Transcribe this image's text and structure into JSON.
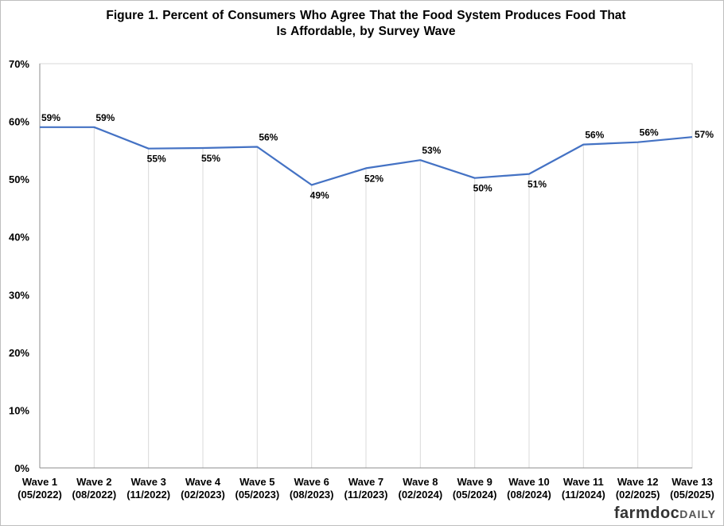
{
  "chart_data": {
    "type": "line",
    "title_line1": "Figure  1. Percent  of  Consumers  Who Agree  That  the  Food  System  Produces  Food  That",
    "title_line2": "Is Affordable,  by  Survey Wave",
    "categories": [
      [
        "Wave 1",
        "(05/2022)"
      ],
      [
        "Wave 2",
        "(08/2022)"
      ],
      [
        "Wave 3",
        "(11/2022)"
      ],
      [
        "Wave 4",
        "(02/2023)"
      ],
      [
        "Wave 5",
        "(05/2023)"
      ],
      [
        "Wave 6",
        "(08/2023)"
      ],
      [
        "Wave 7",
        "(11/2023)"
      ],
      [
        "Wave 8",
        "(02/2024)"
      ],
      [
        "Wave 9",
        "(05/2024)"
      ],
      [
        "Wave 10",
        "(08/2024)"
      ],
      [
        "Wave 11",
        "(11/2024)"
      ],
      [
        "Wave 12",
        "(02/2025)"
      ],
      [
        "Wave 13",
        "(05/2025)"
      ]
    ],
    "values": [
      59.0,
      59.0,
      55.3,
      55.4,
      55.6,
      49.0,
      51.9,
      53.3,
      50.2,
      50.9,
      56.0,
      56.4,
      57.3
    ],
    "data_labels": [
      "59%",
      "59%",
      "55%",
      "55%",
      "56%",
      "49%",
      "52%",
      "53%",
      "50%",
      "51%",
      "56%",
      "56%",
      "57%"
    ],
    "label_position": [
      "above",
      "above",
      "below",
      "below",
      "above",
      "below",
      "below",
      "above",
      "below",
      "below",
      "above",
      "above",
      "right"
    ],
    "y_ticks": [
      "0%",
      "10%",
      "20%",
      "30%",
      "40%",
      "50%",
      "60%",
      "70%"
    ],
    "ylim": [
      0,
      70
    ],
    "grid": false,
    "drop_lines": true,
    "line_color": "#4472c4"
  },
  "footer": {
    "logo_part1": "farmdoc",
    "logo_part2": "DAILY"
  }
}
